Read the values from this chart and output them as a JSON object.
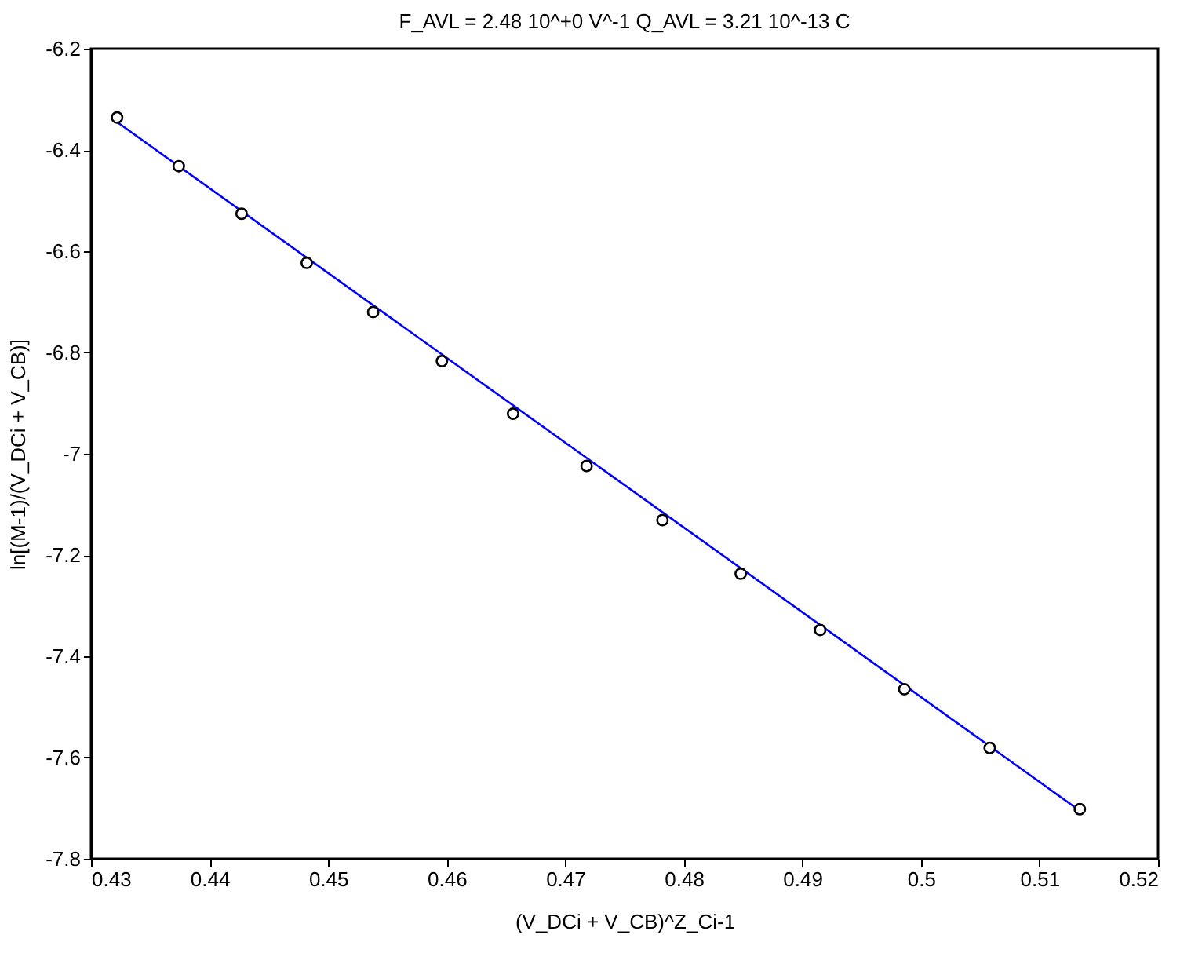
{
  "chart_data": {
    "type": "scatter",
    "title": "F_AVL =  2.48 10^+0 V^-1    Q_AVL =  3.21 10^-13 C",
    "xlabel": "(V_DCi + V_CB)^Z_Ci-1",
    "ylabel": "ln[(M-1)/(V_DCi + V_CB)]",
    "x": [
      0.4322,
      0.4374,
      0.4427,
      0.4482,
      0.4538,
      0.4596,
      0.4656,
      0.4718,
      0.4782,
      0.4848,
      0.4915,
      0.4986,
      0.5058,
      0.5134
    ],
    "series": [
      {
        "type": "line",
        "color": "#0000ff",
        "x": [
          0.4322,
          0.5134
        ],
        "values": [
          -6.345,
          -7.705
        ],
        "marker": "none",
        "line_style": "solid"
      },
      {
        "color": "#000000",
        "values": [
          -6.336,
          -6.432,
          -6.526,
          -6.623,
          -6.72,
          -6.817,
          -6.921,
          -7.024,
          -7.131,
          -7.237,
          -7.348,
          -7.465,
          -7.581,
          -7.702
        ],
        "marker": "circle"
      }
    ],
    "xlim": [
      0.43,
      0.52
    ],
    "xticks": [
      0.43,
      0.44,
      0.45,
      0.46,
      0.47,
      0.48,
      0.49,
      0.5,
      0.51,
      0.52
    ],
    "ylim": [
      -7.8,
      -6.2
    ],
    "yticks": [
      -7.8,
      -7.6,
      -7.4,
      -7.2,
      -7,
      -6.8,
      -6.6,
      -6.4,
      -6.2
    ],
    "grid": false
  }
}
